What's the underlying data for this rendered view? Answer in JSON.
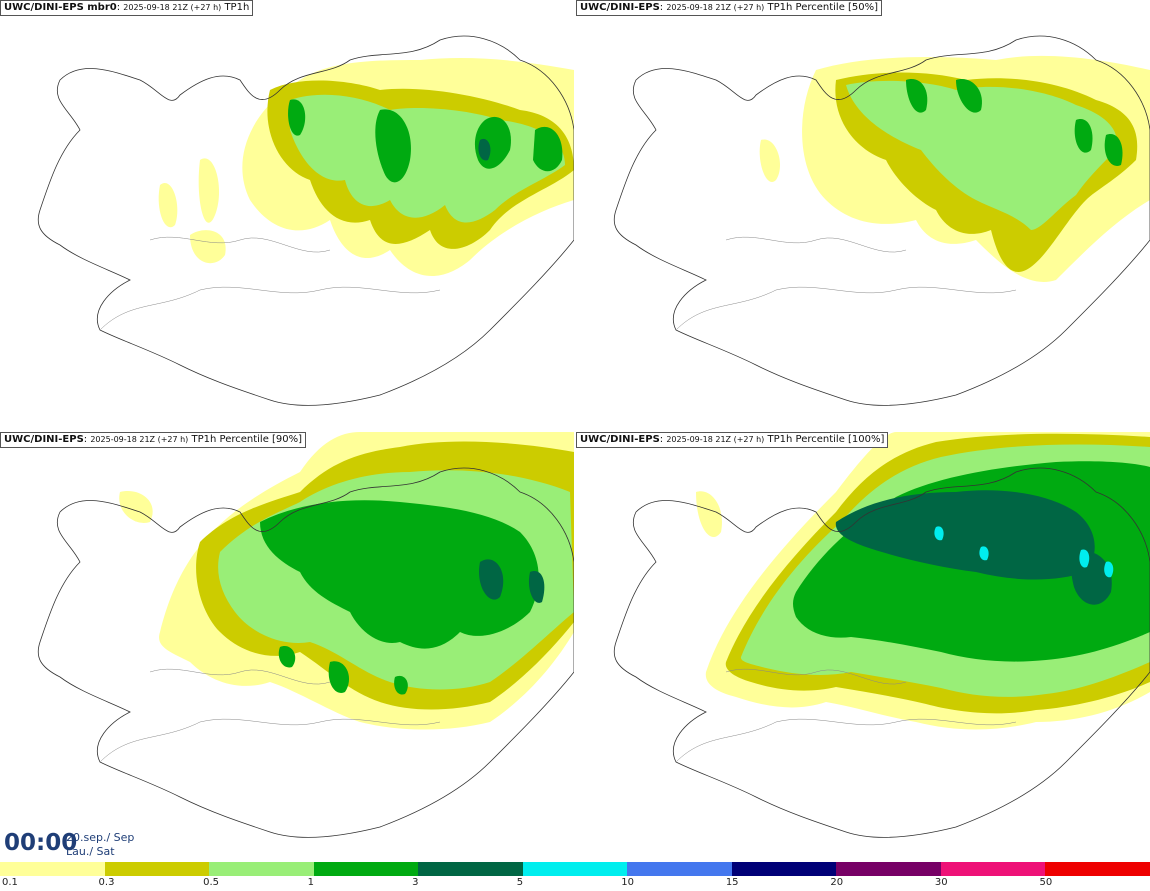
{
  "panels": [
    {
      "title_bold": "UWC/DINI-EPS mbr0",
      "title_small": "2025-09-18 21Z (+27 h)",
      "title_rest": "TP1h"
    },
    {
      "title_bold": "UWC/DINI-EPS",
      "title_small": "2025-09-18 21Z (+27 h)",
      "title_rest": "TP1h Percentile [50%]"
    },
    {
      "title_bold": "UWC/DINI-EPS",
      "title_small": "2025-09-18 21Z (+27 h)",
      "title_rest": "TP1h Percentile [90%]"
    },
    {
      "title_bold": "UWC/DINI-EPS",
      "title_small": "2025-09-18 21Z (+27 h)",
      "title_rest": "TP1h Percentile [100%]"
    }
  ],
  "valid_time": {
    "hour": "00:00",
    "date_line": "20.sep./ Sep",
    "day_line": "Lau./ Sat"
  },
  "legend": {
    "ticks": [
      "0.1",
      "0.3",
      "0.5",
      "1",
      "3",
      "5",
      "10",
      "15",
      "20",
      "30",
      "50"
    ],
    "colors": [
      "#ffff99",
      "#cccc00",
      "#99ee77",
      "#00aa11",
      "#006644",
      "#00eeee",
      "#4477ee",
      "#000077",
      "#770066",
      "#ee1177",
      "#ee0000"
    ]
  }
}
